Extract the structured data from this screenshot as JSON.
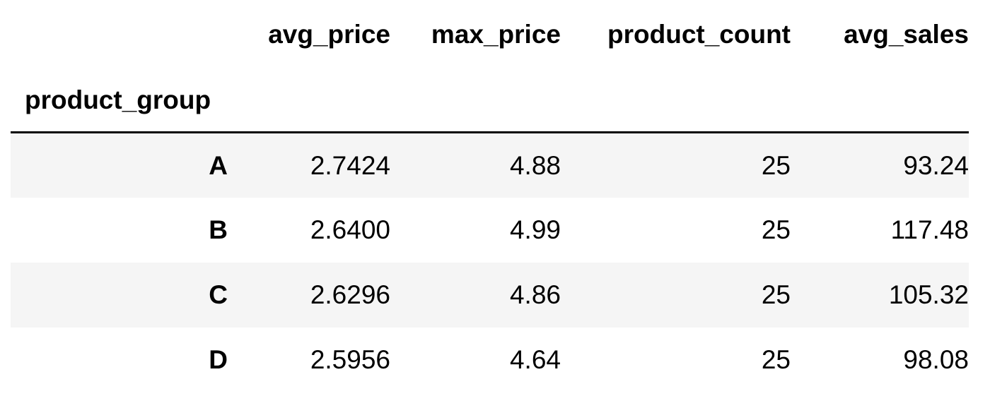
{
  "table": {
    "columns": [
      "avg_price",
      "max_price",
      "product_count",
      "avg_sales"
    ],
    "index_name": "product_group",
    "rows": [
      {
        "key": "A",
        "values": [
          "2.7424",
          "4.88",
          "25",
          "93.24"
        ]
      },
      {
        "key": "B",
        "values": [
          "2.6400",
          "4.99",
          "25",
          "117.48"
        ]
      },
      {
        "key": "C",
        "values": [
          "2.6296",
          "4.86",
          "25",
          "105.32"
        ]
      },
      {
        "key": "D",
        "values": [
          "2.5956",
          "4.64",
          "25",
          "98.08"
        ]
      }
    ]
  }
}
